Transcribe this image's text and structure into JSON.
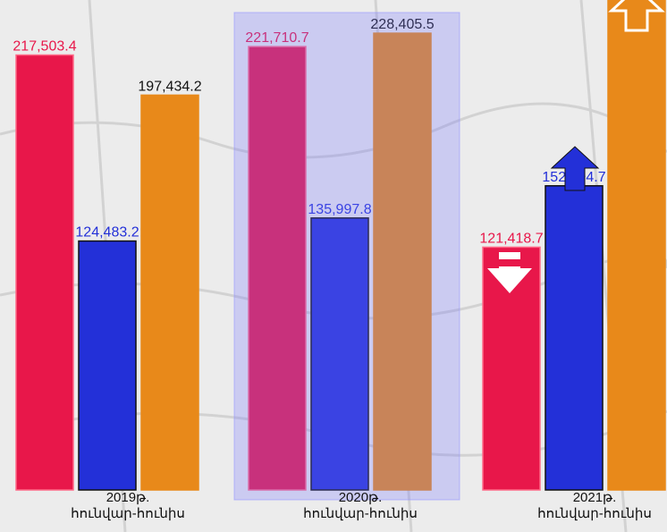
{
  "chart_data": {
    "type": "bar",
    "categories": [
      "2019թ.\nհունվար-հունիս",
      "2020թ.\nհունվար-հունիս",
      "2021թ.\nհունվար-հունիս"
    ],
    "series": [
      {
        "color": "#e8174a",
        "values": [
          217503.4,
          221710.7,
          121418.7
        ],
        "value_labels": [
          "217,503.4",
          "221,710.7",
          "121,418.7"
        ]
      },
      {
        "color": "#2330d8",
        "values": [
          124483.2,
          135997.8,
          152094.7
        ],
        "value_labels": [
          "124,483.2",
          "135,997.8",
          "152,094.7"
        ]
      },
      {
        "color": "#e8891a",
        "values": [
          197434.2,
          228405.5,
          250000
        ],
        "value_labels": [
          "197,434.2",
          "228,405.5",
          null
        ]
      }
    ],
    "ylim": [
      0,
      245000
    ]
  }
}
